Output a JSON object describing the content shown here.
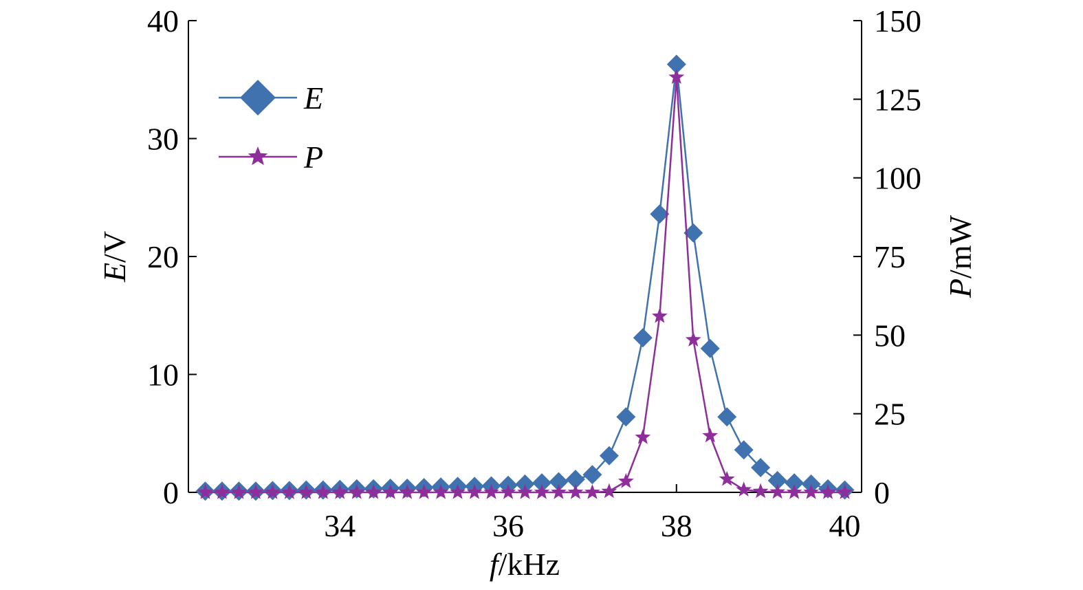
{
  "chart_data": {
    "type": "line",
    "xlabel": {
      "italic": "f",
      "rest": "/kHz"
    },
    "ylabel_left": {
      "italic": "E",
      "rest": "/V"
    },
    "ylabel_right": {
      "italic": "P",
      "rest": "/mW"
    },
    "xlim": [
      32.2,
      40.2
    ],
    "ylim_left": [
      0,
      40
    ],
    "ylim_right": [
      0,
      150
    ],
    "x_ticks": [
      34,
      36,
      38,
      40
    ],
    "y_left_ticks": [
      0,
      10,
      20,
      30,
      40
    ],
    "y_right_ticks": [
      0,
      25,
      50,
      75,
      100,
      125,
      150
    ],
    "legend_position": "top-left",
    "series": [
      {
        "name": "E",
        "axis": "left",
        "color": "#3f72ae",
        "marker": "diamond",
        "x": [
          32.4,
          32.6,
          32.8,
          33.0,
          33.2,
          33.4,
          33.6,
          33.8,
          34.0,
          34.2,
          34.4,
          34.6,
          34.8,
          35.0,
          35.2,
          35.4,
          35.6,
          35.8,
          36.0,
          36.2,
          36.4,
          36.6,
          36.8,
          37.0,
          37.2,
          37.4,
          37.6,
          37.8,
          38.0,
          38.2,
          38.4,
          38.6,
          38.8,
          39.0,
          39.2,
          39.4,
          39.6,
          39.8,
          40.0
        ],
        "values": [
          0.1,
          0.1,
          0.1,
          0.1,
          0.15,
          0.15,
          0.2,
          0.2,
          0.25,
          0.3,
          0.3,
          0.35,
          0.35,
          0.4,
          0.45,
          0.5,
          0.5,
          0.55,
          0.6,
          0.7,
          0.8,
          0.9,
          1.1,
          1.5,
          3.1,
          6.4,
          13.1,
          23.6,
          36.3,
          22.0,
          12.2,
          6.4,
          3.6,
          2.1,
          1.0,
          0.8,
          0.7,
          0.3,
          0.2
        ]
      },
      {
        "name": "P",
        "axis": "right",
        "color": "#8e2e9a",
        "marker": "star",
        "x": [
          32.4,
          32.6,
          32.8,
          33.0,
          33.2,
          33.4,
          33.6,
          33.8,
          34.0,
          34.2,
          34.4,
          34.6,
          34.8,
          35.0,
          35.2,
          35.4,
          35.6,
          35.8,
          36.0,
          36.2,
          36.4,
          36.6,
          36.8,
          37.0,
          37.2,
          37.4,
          37.6,
          37.8,
          38.0,
          38.2,
          38.4,
          38.6,
          38.8,
          39.0,
          39.2,
          39.4,
          39.6,
          39.8,
          40.0
        ],
        "values": [
          0,
          0,
          0,
          0,
          0,
          0,
          0,
          0,
          0,
          0,
          0,
          0,
          0,
          0,
          0,
          0,
          0,
          0,
          0,
          0,
          0,
          0,
          0,
          0,
          0.3,
          3.5,
          17.5,
          56.0,
          132.0,
          48.5,
          18.0,
          4.2,
          0.8,
          0.3,
          0.1,
          0,
          0,
          0,
          0
        ]
      }
    ]
  }
}
